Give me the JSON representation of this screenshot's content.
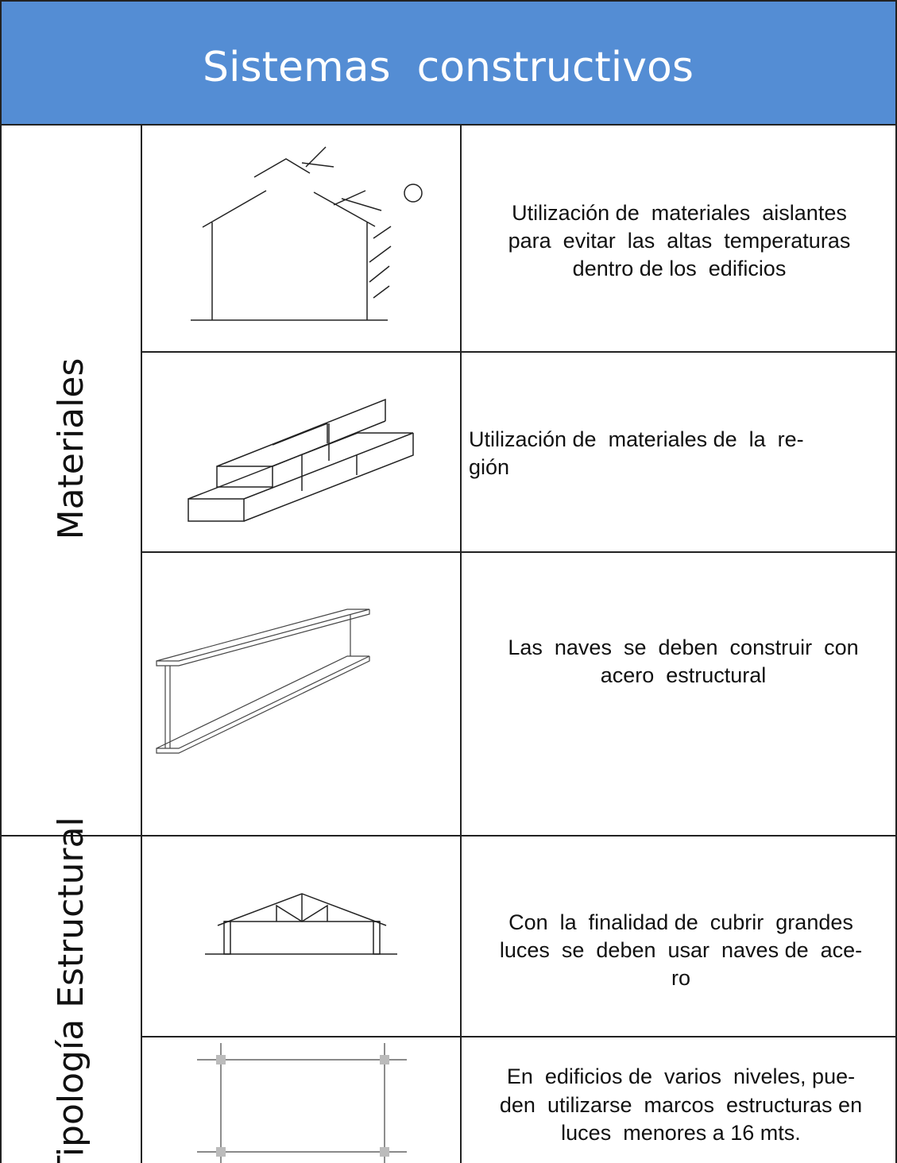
{
  "header": {
    "title": "Sistemas  constructivos"
  },
  "table": {
    "groups": [
      {
        "label": "Materiales",
        "rows": [
          {
            "lines": [
              "Utilización de  materiales  aislantes",
              "para  evitar  las  altas  temperaturas",
              "dentro de los  edificios"
            ]
          },
          {
            "lines": [
              "Utilización de  materiales de  la  re-",
              "gión"
            ]
          },
          {
            "lines": [
              "Las  naves  se  deben  construir  con",
              "acero  estructural"
            ]
          }
        ]
      },
      {
        "label": "Tipología Estructural",
        "rows": [
          {
            "lines": [
              "Con  la  finalidad de  cubrir  grandes",
              "luces  se  deben  usar  naves de  ace-",
              "ro"
            ]
          },
          {
            "lines": [
              "En  edificios de  varios  niveles, pue-",
              "den  utilizarse  marcos  estructuras en",
              "luces  menores a 16 mts."
            ]
          }
        ]
      }
    ]
  }
}
